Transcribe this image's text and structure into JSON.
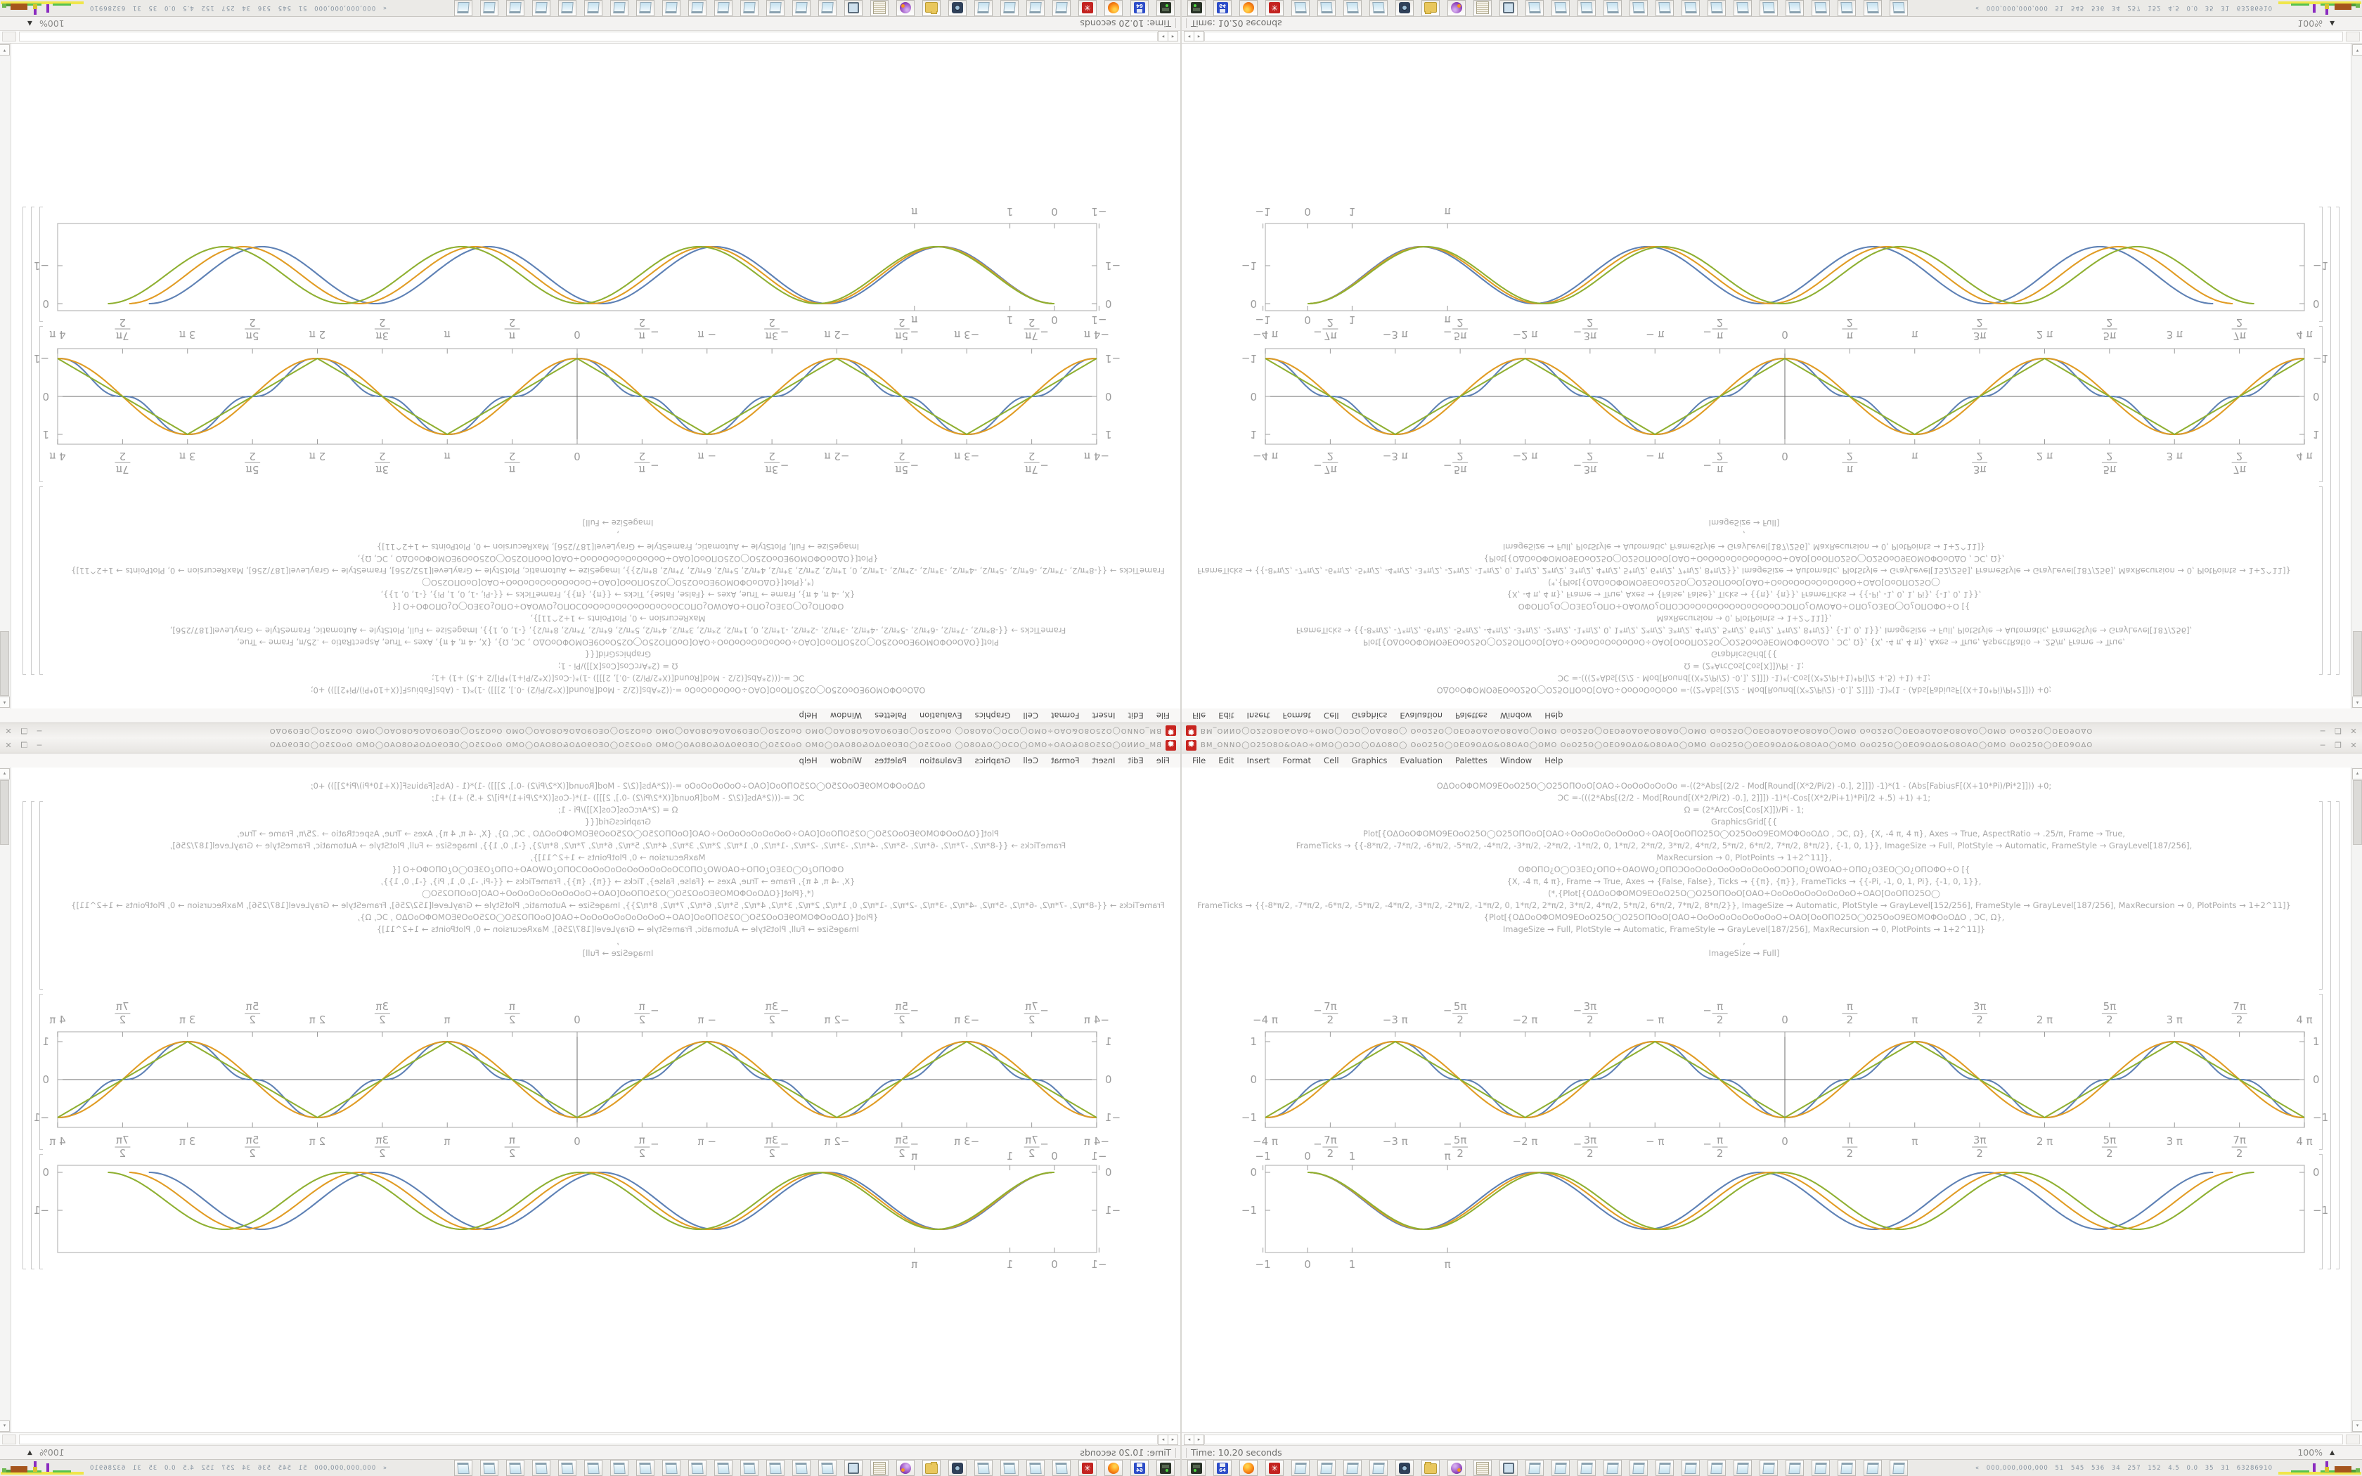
{
  "note": "2x2 mirrored composite of one 1680x1050 screenshot; bottom-right quadrant is the original, others are flipped copies",
  "window": {
    "title_garbled": "ΒΜ_ΟΝΝΟ◯Ο25Ο8Ο&ΟΑΟ÷ΟΜΟ◯ΟƆΟ◯ΟΔΟ8Ο◯ ΟοΟ25Ο◯ΟΕΟ9ΟΔΟ&Ο8ΟΑΟ◯ΟΜΟ ΟοΟ25Ο◯ΟΕΟ9ΟΔΟ&Ο8ΟΑΟ◯ΟΜΟ ΟοΟ25Ο◯ΟΕΟ9ΟΔΟ&Ο8ΟΑΟ◯ΟΜΟ ΟοΟ25Ο◯ΟΕΟ9ΟΔΟ&Ο8ΟΑΟ◯ΟΜΟ ΟοΟ25Ο◯ΟΕΟ9ΟΔΟ",
    "app_icon_glyph": "✹",
    "controls": {
      "minimize": "─",
      "restore": "❐",
      "close": "✕"
    }
  },
  "menu": {
    "items": [
      "File",
      "Edit",
      "Insert",
      "Format",
      "Cell",
      "Graphics",
      "Evaluation",
      "Palettes",
      "Window",
      "Help"
    ]
  },
  "code_cell": {
    "lines": [
      "ΟΔΟοΟΦΟΜΟ9ΕΟοΟ25Ο◯Ο25ΟΠΟοΟ[ΟΑΟ÷ΟοΟοΟοΟοΟο =-((2*Abs[(2/2 - Mod[Round[(X*2/Pi/2) -0.], 2]]]) -1)*(1 - (Abs[FabiusF[(X+10*Pi)/Pi*2]])) +0;",
      "ƆC =-(((2*Abs[(2/2 - Mod[Round[(X*2/Pi/2) -0.], 2]]]) -1)*(-Cos[(X*2/Pi+1)*Pi]/2 +.5) +1) +1;",
      "Ω = (2*ArcCos[Cos[X]])/Pi - 1;",
      "GraphicsGrid[{{",
      "Plot[{ΟΔΟοΟΦΟΜΟ9ΕΟοΟ25Ο◯Ο25ΟΠΟοΟ[ΟΑΟ÷ΟοΟοΟοΟοΟοΟοΟ÷ΟΑΟ[ΟοΟΠΟ25Ο◯Ο25ΟοΟ9ΕΟΜΟΦΟοΟΔΟ , ƆC, Ω}, {X, -4 π, 4 π}, Axes → True, AspectRatio → .25/π, Frame → True,",
      "FrameTicks → {{-8*π/2, -7*π/2, -6*π/2, -5*π/2, -4*π/2, -3*π/2, -2*π/2, -1*π/2, 0, 1*π/2, 2*π/2, 3*π/2, 4*π/2, 5*π/2, 6*π/2, 7*π/2, 8*π/2}, {-1, 0, 1}}, ImageSize → Full, PlotStyle → Automatic, FrameStyle → GrayLevel[187/256],",
      "MaxRecursion → 0, PlotPoints → 1+2^11]},",
      "ΟΦΟΠΟ¿Ο◯Ο3ΕΟ¿ΟΠΟ÷ΟΑΟWΟ¿ΟΠΟƆΟοΟοΟοΟοΟοΟοΟοΟοΟƆΟΠΟ¿ΟWΟΑΟ÷ΟΠΟ¿Ο3ΕΟ◯Ο¿ΟΠΟΦΟ÷Ο  [{",
      "{X, -4 π, 4 π}, Frame → True, Axes → {False, False}, Ticks → {{π}, {π}}, FrameTicks → {{-Pi, -1, 0, 1, Pi}, {-1, 0, 1}},",
      "(*,{Plot[{ΟΔΟοΟΦΟΜΟ9ΕΟοΟ25Ο◯Ο25ΟΠΟοΟ[ΟΑΟ÷ΟοΟοΟοΟοΟοΟοΟοΟ÷ΟΑΟ[ΟοΟΠΟ25Ο◯",
      "FrameTicks → {{-8*π/2, -7*π/2, -6*π/2, -5*π/2, -4*π/2, -3*π/2, -2*π/2, -1*π/2, 0, 1*π/2, 2*π/2, 3*π/2, 4*π/2, 5*π/2, 6*π/2, 7*π/2, 8*π/2}}, ImageSize → Automatic, PlotStyle → GrayLevel[152/256], FrameStyle → GrayLevel[187/256], MaxRecursion → 0, PlotPoints → 1+2^11]}",
      "{Plot[{ΟΔΟοΟΦΟΜΟ9ΕΟοΟ25Ο◯Ο25ΟΠΟοΟ[ΟΑΟ÷ΟοΟοΟοΟοΟοΟοΟοΟ÷ΟΑΟ[ΟοΟΠΟ25Ο◯Ο25ΟοΟ9ΕΟΜΟΦΟοΟΔΟ , ƆC, Ω},",
      "ImageSize → Full, PlotStyle → Automatic, FrameStyle → GrayLevel[187/256], MaxRecursion → 0, PlotPoints → 1+2^11]}",
      ",",
      "ImageSize → Full]"
    ]
  },
  "chart_data": [
    {
      "type": "line",
      "title": "",
      "xlabel": "",
      "ylabel": "",
      "xlim_in_pi": [
        -4,
        4
      ],
      "ylim": [
        -1.25,
        1.25
      ],
      "grid": false,
      "frame": true,
      "axes_lines": {
        "x_axis_at_y": 0,
        "y_axis_at_x": 0
      },
      "x_tick_labels": [
        "-4π",
        "-7π/2",
        "-3π",
        "-5π/2",
        "-2π",
        "-3π/2",
        "-π",
        "-π/2",
        "0",
        "π/2",
        "π",
        "3π/2",
        "2π",
        "5π/2",
        "3π",
        "7π/2",
        "4π"
      ],
      "x_tick_values_in_pi": [
        -4,
        -3.5,
        -3,
        -2.5,
        -2,
        -1.5,
        -1,
        -0.5,
        0,
        0.5,
        1,
        1.5,
        2,
        2.5,
        3,
        3.5,
        4
      ],
      "y_tick_values": [
        -1,
        0,
        1
      ],
      "tick_label_sides": "top, bottom, left and right of frame",
      "series": [
        {
          "name": "smoothed staircase wave (FabiusF-based)",
          "color": "#5e81b5",
          "shape": "smoothstair",
          "period": "2π",
          "values_at_multiples_of_pi_over_2": [
            -1,
            0,
            1,
            0
          ]
        },
        {
          "name": "cosine wave -Cos[x]",
          "color": "#e19c24",
          "shape": "negcos",
          "period": "2π",
          "values_at_multiples_of_pi_over_2": [
            -1,
            0,
            1,
            0
          ]
        },
        {
          "name": "triangle wave 2·ArcCos[Cos[x]]/π − 1",
          "color": "#8fb032",
          "shape": "triangle",
          "period": "2π",
          "values_at_multiples_of_pi_over_2": [
            -1,
            0,
            1,
            0
          ]
        }
      ]
    },
    {
      "type": "line",
      "title": "",
      "xlabel": "",
      "ylabel": "",
      "xlim": [
        -1,
        22.4
      ],
      "ylim": [
        -2.15,
        0.12
      ],
      "grid": false,
      "frame": true,
      "x_tick_labels": [
        "-1",
        "0",
        "1",
        "π"
      ],
      "x_tick_values": [
        -1,
        0,
        1,
        3.14159
      ],
      "y_tick_labels": [
        "0",
        "-1"
      ],
      "y_tick_values": [
        0,
        -1
      ],
      "series": [
        {
          "name": "blue detuned cosine",
          "color": "#5e81b5",
          "shape": "offsetcos",
          "amplitude": -0.75,
          "cycles": 4,
          "x_start": 0,
          "x_end": 20.32
        },
        {
          "name": "orange detuned cosine",
          "color": "#e19c24",
          "shape": "offsetcos",
          "amplitude": -0.75,
          "cycles": 4,
          "x_start": 0,
          "x_end": 20.79
        },
        {
          "name": "green detuned cosine",
          "color": "#8fb032",
          "shape": "offsetcos",
          "amplitude": -0.75,
          "cycles": 4,
          "x_start": 0,
          "x_end": 21.27
        }
      ]
    }
  ],
  "scrollbar": {
    "left_arrow": "◂",
    "right_arrow": "▸",
    "up_arrow": "▴",
    "down_arrow": "▾"
  },
  "status": {
    "time_label": "Time: 10.20 seconds",
    "magnification": "100%",
    "magnification_arrow": "▲"
  },
  "taskbar": {
    "buttons": [
      {
        "kind": "drive-green"
      },
      {
        "kind": "floppy-64"
      },
      {
        "kind": "firefox"
      },
      {
        "kind": "gear-red"
      },
      {
        "kind": "notepad"
      },
      {
        "kind": "notepad"
      },
      {
        "kind": "notepad"
      },
      {
        "kind": "notepad"
      },
      {
        "kind": "camera"
      },
      {
        "kind": "folder-yellow"
      },
      {
        "kind": "ball-purple"
      },
      {
        "kind": "scroll"
      },
      {
        "kind": "monitor"
      },
      {
        "kind": "notepad"
      },
      {
        "kind": "notepad"
      },
      {
        "kind": "notepad"
      },
      {
        "kind": "notepad"
      },
      {
        "kind": "notepad"
      },
      {
        "kind": "notepad"
      },
      {
        "kind": "notepad"
      },
      {
        "kind": "notepad"
      },
      {
        "kind": "notepad"
      },
      {
        "kind": "notepad"
      },
      {
        "kind": "notepad"
      },
      {
        "kind": "notepad"
      },
      {
        "kind": "notepad"
      },
      {
        "kind": "notepad"
      },
      {
        "kind": "notepad"
      }
    ],
    "tray_stats_text": "« 000,000,000,000 51 545 536 34 257 152 4.5 0.0 35 31 63286910"
  },
  "colors": {
    "plot_blue": "#5e81b5",
    "plot_orange": "#e19c24",
    "plot_green": "#8fb032",
    "frame_gray": "#bdbdbd",
    "axis_gray": "#6e6e6e",
    "label_gray": "#9b9b9b",
    "code_gray": "#a9a9a9",
    "app_icon_red": "#c8241f"
  }
}
